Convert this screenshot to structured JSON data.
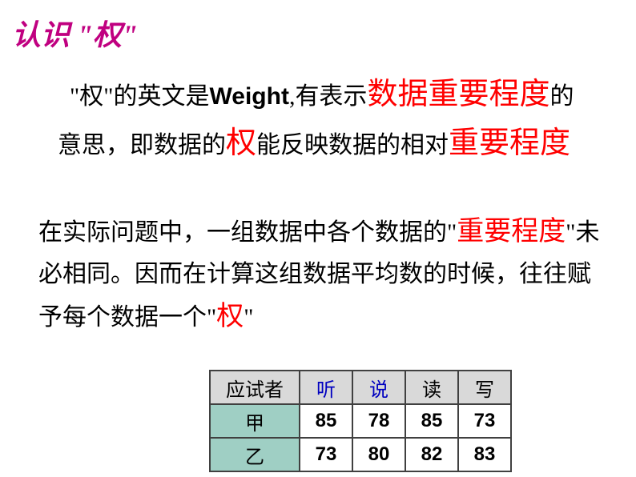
{
  "title": "认识 \"权\"",
  "para1": {
    "t1": "\"权\"的英文是",
    "weight": "Weight",
    "t2": ",有表示",
    "r1": "数据重要程度",
    "t3": "的意思，即数据的",
    "r2": "权",
    "t4": "能反映数据的相对",
    "r3": "重要程度"
  },
  "para2": {
    "t1": "在实际问题中，一组数据中各个数据的\"",
    "r1": "重要程度",
    "t2": "\"未必相同。因而在计算这组数据平均数的时候，往往赋予每个数据一个\"",
    "r2": "权",
    "t3": "\""
  },
  "table": {
    "header": [
      "应试者",
      "听",
      "说",
      "读",
      "写"
    ],
    "rows": [
      {
        "label": "甲",
        "values": [
          "85",
          "78",
          "85",
          "73"
        ]
      },
      {
        "label": "乙",
        "values": [
          "73",
          "80",
          "82",
          "83"
        ]
      }
    ],
    "colors": {
      "first_col_bg": "#9fcfc4",
      "header_bg": "#d9d9d9",
      "header_blue": "#0000c0",
      "border": "#404040",
      "value_bg": "#ffffff"
    }
  }
}
